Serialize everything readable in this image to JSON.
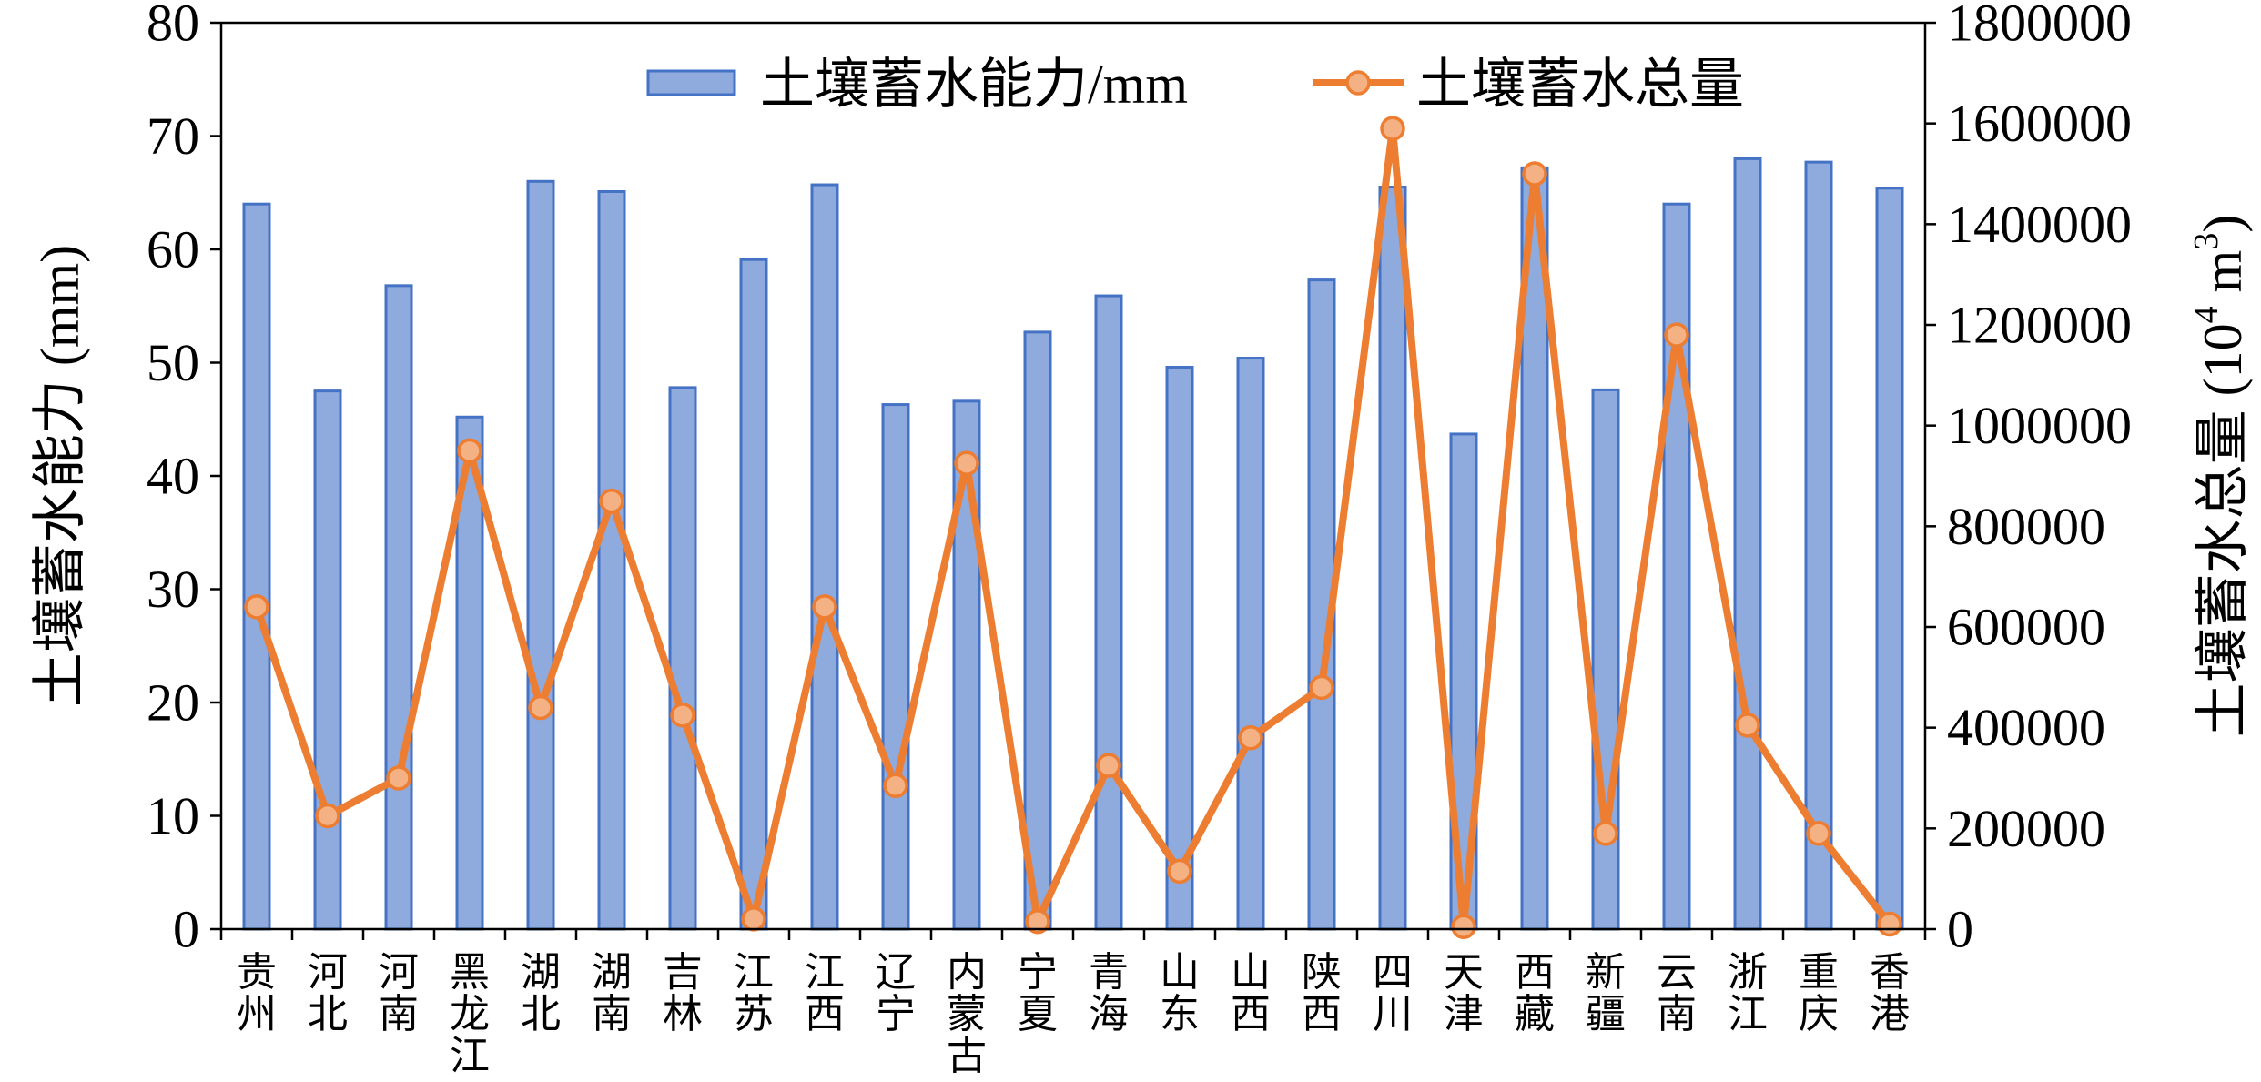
{
  "chart_data": {
    "type": "bar",
    "categories": [
      "贵州",
      "河北",
      "河南",
      "黑龙江",
      "湖北",
      "湖南",
      "吉林",
      "江苏",
      "江西",
      "辽宁",
      "内蒙古",
      "宁夏",
      "青海",
      "山东",
      "山西",
      "陕西",
      "四川",
      "天津",
      "西藏",
      "新疆",
      "云南",
      "浙江",
      "重庆",
      "香港"
    ],
    "series": [
      {
        "name": "土壤蓄水能力/mm",
        "type": "bar",
        "axis": "left",
        "color": "#8FAADC",
        "edge_color": "#4472C4",
        "values": [
          64.0,
          47.5,
          56.8,
          45.2,
          66.0,
          65.1,
          47.8,
          59.1,
          65.7,
          46.3,
          46.6,
          52.7,
          55.9,
          49.6,
          50.4,
          57.3,
          65.5,
          43.7,
          67.2,
          47.6,
          64.0,
          68.0,
          67.7,
          65.4
        ]
      },
      {
        "name": "土壤蓄水总量",
        "type": "line",
        "axis": "right",
        "color": "#ED7D31",
        "marker_fill": "#F4B183",
        "values": [
          640000,
          225000,
          300000,
          950000,
          440000,
          850000,
          425000,
          20000,
          640000,
          285000,
          925000,
          15000,
          325000,
          115000,
          380000,
          480000,
          1590000,
          5000,
          1500000,
          190000,
          1180000,
          405000,
          190000,
          10000
        ]
      }
    ],
    "y_left": {
      "label": "土壤蓄水能力 (mm)",
      "range": [
        0,
        80
      ],
      "ticks": [
        0,
        10,
        20,
        30,
        40,
        50,
        60,
        70,
        80
      ]
    },
    "y_right": {
      "label": "土壤蓄水总量 (10⁴ m³)",
      "label_main": "土壤蓄水总量 (10",
      "label_sup4": "4",
      "label_unit": " m",
      "label_sup3": "3",
      "label_close": ")",
      "range": [
        0,
        1800000
      ],
      "ticks": [
        0,
        200000,
        400000,
        600000,
        800000,
        1000000,
        1200000,
        1400000,
        1600000,
        1800000
      ]
    },
    "legend": {
      "position": "top",
      "items": [
        "土壤蓄水能力/mm",
        "土壤蓄水总量"
      ]
    },
    "grid": false
  }
}
